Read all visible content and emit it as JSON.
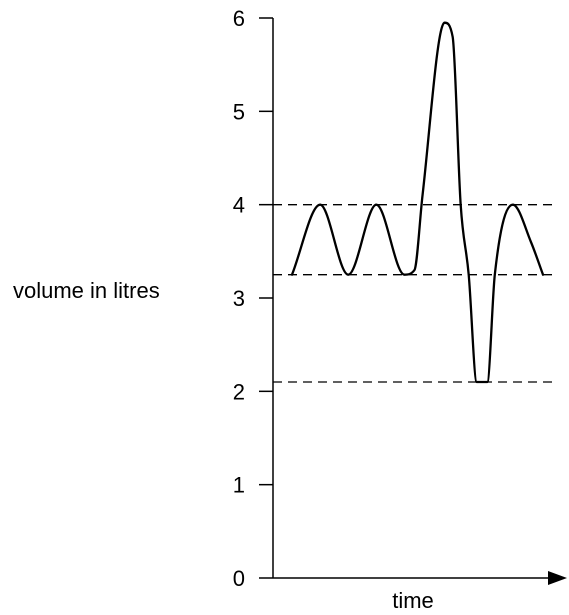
{
  "chart_data": {
    "type": "line",
    "title": "",
    "xlabel": "time",
    "ylabel": "volume in litres",
    "ylim": [
      0,
      6
    ],
    "yticks": [
      "0",
      "1",
      "2",
      "3",
      "4",
      "5",
      "6"
    ],
    "grid": false,
    "legend": "none",
    "reference_lines": [
      4.0,
      3.25,
      2.1
    ],
    "series": [
      {
        "points": [
          [
            0.0,
            3.25
          ],
          [
            0.56,
            4.0
          ],
          [
            1.12,
            3.25
          ],
          [
            1.68,
            4.0
          ],
          [
            2.24,
            3.25
          ],
          [
            2.44,
            3.3
          ],
          [
            2.6,
            4.1
          ],
          [
            3.04,
            5.95
          ],
          [
            3.2,
            5.8
          ],
          [
            3.36,
            4.0
          ],
          [
            3.52,
            3.25
          ],
          [
            3.68,
            2.1
          ],
          [
            3.89,
            2.1
          ],
          [
            4.04,
            3.25
          ],
          [
            4.4,
            4.0
          ],
          [
            4.76,
            3.6
          ],
          [
            5.0,
            3.25
          ]
        ]
      }
    ],
    "colors": {
      "line": "#000000",
      "axis": "#000000",
      "reference": "#000000"
    }
  }
}
